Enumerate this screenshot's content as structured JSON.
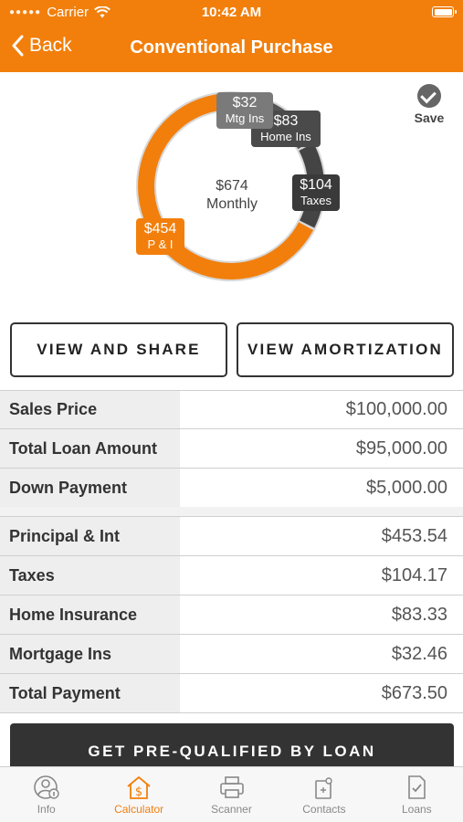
{
  "status": {
    "carrier": "Carrier",
    "time": "10:42 AM"
  },
  "nav": {
    "back_label": "Back",
    "title": "Conventional Purchase"
  },
  "chart_data": {
    "type": "pie",
    "style": "donut",
    "center": {
      "amount": "$674",
      "label": "Monthly"
    },
    "segments": [
      {
        "name": "P & I",
        "value": 454,
        "label": "$454",
        "color": "#f27f0c"
      },
      {
        "name": "Taxes",
        "value": 104,
        "label": "$104",
        "color": "#444444"
      },
      {
        "name": "Home Ins",
        "value": 83,
        "label": "$83",
        "color": "#555555"
      },
      {
        "name": "Mtg Ins",
        "value": 32,
        "label": "$32",
        "color": "#777777"
      }
    ]
  },
  "save": {
    "label": "Save"
  },
  "buttons": {
    "view_share": "VIEW AND SHARE",
    "view_amortization": "VIEW AMORTIZATION"
  },
  "loan_table": [
    {
      "label": "Sales Price",
      "value": "$100,000.00"
    },
    {
      "label": "Total Loan Amount",
      "value": "$95,000.00"
    },
    {
      "label": "Down Payment",
      "value": "$5,000.00"
    }
  ],
  "payment_table": [
    {
      "label": "Principal & Int",
      "value": "$453.54"
    },
    {
      "label": "Taxes",
      "value": "$104.17"
    },
    {
      "label": "Home Insurance",
      "value": "$83.33"
    },
    {
      "label": "Mortgage Ins",
      "value": "$32.46"
    },
    {
      "label": "Total Payment",
      "value": "$673.50"
    }
  ],
  "cta": {
    "label": "GET PRE-QUALIFIED BY LOAN"
  },
  "tabs": [
    {
      "label": "Info",
      "icon": "info-person-icon",
      "active": false
    },
    {
      "label": "Calculator",
      "icon": "house-dollar-icon",
      "active": true
    },
    {
      "label": "Scanner",
      "icon": "printer-icon",
      "active": false
    },
    {
      "label": "Contacts",
      "icon": "contacts-icon",
      "active": false
    },
    {
      "label": "Loans",
      "icon": "document-check-icon",
      "active": false
    }
  ],
  "colors": {
    "accent": "#f27f0c",
    "dark": "#333333"
  }
}
